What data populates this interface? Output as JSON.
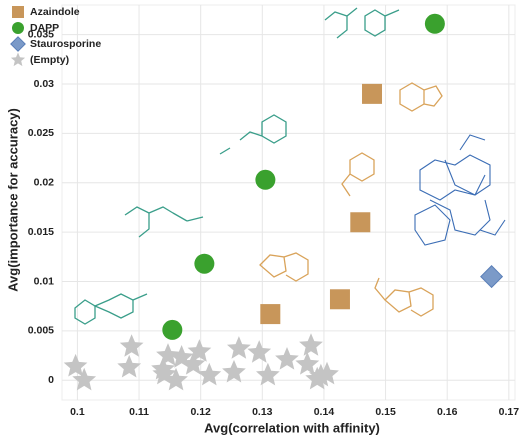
{
  "chart_data": {
    "type": "scatter",
    "x_label": "Avg(correlation with affinity)",
    "y_label": "Avg(importance for accuracy)",
    "xlim": [
      0.0975,
      0.171
    ],
    "ylim": [
      -0.002,
      0.038
    ],
    "xticks": [
      0.1,
      0.11,
      0.12,
      0.13,
      0.14,
      0.15,
      0.16,
      0.17
    ],
    "yticks": [
      0,
      0.005,
      0.01,
      0.015,
      0.02,
      0.025,
      0.03,
      0.035
    ],
    "grid": true,
    "legend": "top-left",
    "series": [
      {
        "name": "Azaindole",
        "color": "#c8965a",
        "marker": "square",
        "x": [
          0.1478,
          0.1459,
          0.1426,
          0.1313
        ],
        "y": [
          0.029,
          0.016,
          0.0082,
          0.0067
        ]
      },
      {
        "name": "DAPP",
        "color": "#3aa12e",
        "marker": "circle",
        "x": [
          0.158,
          0.1305,
          0.1206,
          0.1154
        ],
        "y": [
          0.0361,
          0.0203,
          0.0118,
          0.0051
        ]
      },
      {
        "name": "Staurosporine",
        "color": "#7b9ac8",
        "marker": "diamond",
        "x": [
          0.1672
        ],
        "y": [
          0.0105
        ]
      },
      {
        "name": "(Empty)",
        "color": "#c4c4c4",
        "marker": "star",
        "x": [
          0.0997,
          0.1011,
          0.1088,
          0.1084,
          0.1139,
          0.1147,
          0.1141,
          0.116,
          0.1169,
          0.1188,
          0.1198,
          0.1214,
          0.1254,
          0.1262,
          0.1295,
          0.1309,
          0.134,
          0.1373,
          0.1379,
          0.1389,
          0.1395,
          0.1405
        ],
        "y": [
          0.0014,
          0,
          0.0034,
          0.0013,
          0.0011,
          0.0025,
          0.0006,
          0,
          0.0023,
          0.0016,
          0.0029,
          0.0005,
          0.0008,
          0.0032,
          0.0028,
          0.0005,
          0.0021,
          0.0016,
          0.0035,
          0.0001,
          0.0004,
          0.0006
        ]
      }
    ]
  }
}
